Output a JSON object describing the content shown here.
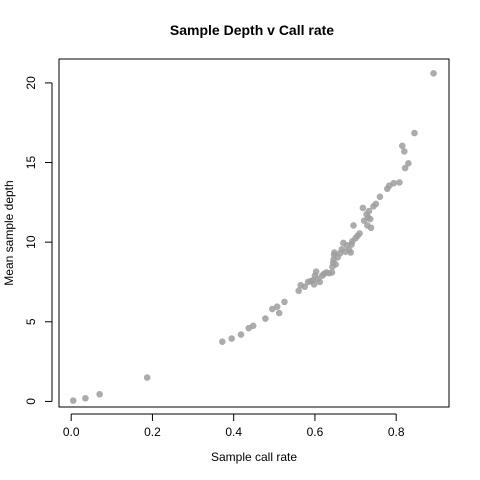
{
  "chart_data": {
    "type": "scatter",
    "title": "Sample Depth v Call rate",
    "xlabel": "Sample call rate",
    "ylabel": "Mean sample depth",
    "xlim": [
      -0.03,
      0.93
    ],
    "ylim": [
      -0.35,
      21.5
    ],
    "x_ticks": [
      "0.0",
      "0.2",
      "0.4",
      "0.6",
      "0.8"
    ],
    "y_ticks": [
      "0",
      "5",
      "10",
      "15",
      "20"
    ],
    "grid": false,
    "legend": "none",
    "point_color": "#9e9e9e",
    "points": [
      [
        0.005,
        0.05
      ],
      [
        0.035,
        0.2
      ],
      [
        0.07,
        0.45
      ],
      [
        0.187,
        1.5
      ],
      [
        0.372,
        3.75
      ],
      [
        0.395,
        3.95
      ],
      [
        0.418,
        4.2
      ],
      [
        0.437,
        4.6
      ],
      [
        0.448,
        4.75
      ],
      [
        0.478,
        5.2
      ],
      [
        0.495,
        5.8
      ],
      [
        0.507,
        5.95
      ],
      [
        0.512,
        5.55
      ],
      [
        0.525,
        6.25
      ],
      [
        0.56,
        6.95
      ],
      [
        0.565,
        7.3
      ],
      [
        0.575,
        7.2
      ],
      [
        0.583,
        7.5
      ],
      [
        0.59,
        7.55
      ],
      [
        0.595,
        7.6
      ],
      [
        0.598,
        7.35
      ],
      [
        0.6,
        7.9
      ],
      [
        0.603,
        8.15
      ],
      [
        0.607,
        7.7
      ],
      [
        0.612,
        7.5
      ],
      [
        0.618,
        7.9
      ],
      [
        0.622,
        8.0
      ],
      [
        0.628,
        8.1
      ],
      [
        0.635,
        8.05
      ],
      [
        0.642,
        8.1
      ],
      [
        0.643,
        8.45
      ],
      [
        0.645,
        8.7
      ],
      [
        0.646,
        8.9
      ],
      [
        0.647,
        9.2
      ],
      [
        0.648,
        9.35
      ],
      [
        0.651,
        8.6
      ],
      [
        0.656,
        9.05
      ],
      [
        0.662,
        9.3
      ],
      [
        0.666,
        9.55
      ],
      [
        0.67,
        9.95
      ],
      [
        0.675,
        9.4
      ],
      [
        0.679,
        9.8
      ],
      [
        0.684,
        9.5
      ],
      [
        0.688,
        9.35
      ],
      [
        0.69,
        9.85
      ],
      [
        0.692,
        10.05
      ],
      [
        0.695,
        11.05
      ],
      [
        0.7,
        10.25
      ],
      [
        0.705,
        10.4
      ],
      [
        0.71,
        10.55
      ],
      [
        0.718,
        12.15
      ],
      [
        0.721,
        11.35
      ],
      [
        0.727,
        11.75
      ],
      [
        0.729,
        11.05
      ],
      [
        0.731,
        11.55
      ],
      [
        0.733,
        11.95
      ],
      [
        0.736,
        11.45
      ],
      [
        0.738,
        10.9
      ],
      [
        0.744,
        12.25
      ],
      [
        0.75,
        12.4
      ],
      [
        0.76,
        12.85
      ],
      [
        0.778,
        13.35
      ],
      [
        0.783,
        13.55
      ],
      [
        0.794,
        13.7
      ],
      [
        0.808,
        13.75
      ],
      [
        0.815,
        16.05
      ],
      [
        0.82,
        15.7
      ],
      [
        0.822,
        14.65
      ],
      [
        0.83,
        14.95
      ],
      [
        0.845,
        16.85
      ],
      [
        0.892,
        20.6
      ]
    ]
  }
}
